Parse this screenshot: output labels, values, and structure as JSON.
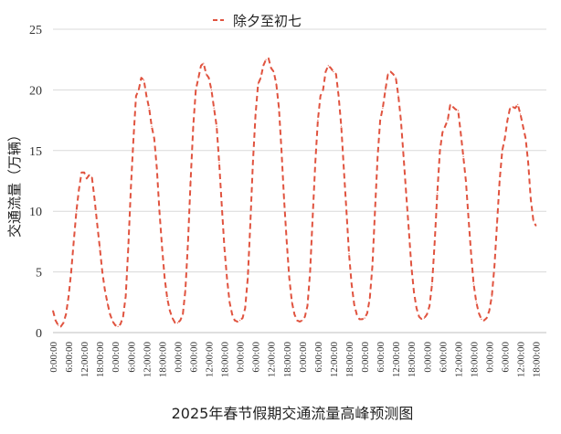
{
  "chart_data": {
    "type": "line",
    "title": "",
    "xlabel": "2025年春节假期交通流量高峰预测图",
    "ylabel": "交通流量（万辆）",
    "ylim": [
      0,
      25
    ],
    "yticks": [
      0,
      5,
      10,
      15,
      20,
      25
    ],
    "grid": "horizontal",
    "legend_position": "top-center",
    "x_tick_labels": [
      "0:00:00",
      "6:00:00",
      "12:00:00",
      "18:00:00",
      "0:00:00",
      "6:00:00",
      "12:00:00",
      "18:00:00",
      "0:00:00",
      "6:00:00",
      "12:00:00",
      "18:00:00",
      "0:00:00",
      "6:00:00",
      "12:00:00",
      "18:00:00",
      "0:00:00",
      "6:00:00",
      "12:00:00",
      "18:00:00",
      "0:00:00",
      "6:00:00",
      "12:00:00",
      "18:00:00",
      "0:00:00",
      "6:00:00",
      "12:00:00",
      "18:00:00",
      "0:00:00",
      "6:00:00",
      "12:00:00",
      "18:00:00"
    ],
    "x_hours": [
      0,
      6,
      12,
      18,
      24,
      30,
      36,
      42,
      48,
      54,
      60,
      66,
      72,
      78,
      84,
      90,
      96,
      102,
      108,
      114,
      120,
      126,
      132,
      138,
      144,
      150,
      156,
      162,
      168,
      174,
      180,
      186
    ],
    "series": [
      {
        "name": "除夕至初七",
        "color": "#e0533f",
        "style": "dashed",
        "points": [
          [
            0,
            1.8
          ],
          [
            1,
            1.0
          ],
          [
            2,
            0.6
          ],
          [
            3,
            0.5
          ],
          [
            4,
            0.8
          ],
          [
            5,
            1.5
          ],
          [
            6,
            3.0
          ],
          [
            7,
            5.0
          ],
          [
            8,
            7.5
          ],
          [
            9,
            10.0
          ],
          [
            10,
            11.8
          ],
          [
            11,
            13.2
          ],
          [
            12,
            13.2
          ],
          [
            13,
            12.7
          ],
          [
            14,
            13.0
          ],
          [
            15,
            12.8
          ],
          [
            16,
            11.0
          ],
          [
            17,
            9.0
          ],
          [
            18,
            7.0
          ],
          [
            19,
            5.0
          ],
          [
            20,
            3.5
          ],
          [
            21,
            2.4
          ],
          [
            22,
            1.5
          ],
          [
            23,
            0.9
          ],
          [
            24,
            0.6
          ],
          [
            25,
            0.5
          ],
          [
            26,
            0.7
          ],
          [
            27,
            1.3
          ],
          [
            28,
            3.0
          ],
          [
            29,
            7.0
          ],
          [
            30,
            12.0
          ],
          [
            31,
            16.0
          ],
          [
            32,
            19.5
          ],
          [
            33,
            20.0
          ],
          [
            34,
            21.0
          ],
          [
            35,
            20.8
          ],
          [
            36,
            19.5
          ],
          [
            37,
            18.5
          ],
          [
            38,
            17.0
          ],
          [
            39,
            16.0
          ],
          [
            40,
            13.5
          ],
          [
            41,
            10.0
          ],
          [
            42,
            7.0
          ],
          [
            43,
            4.5
          ],
          [
            44,
            2.8
          ],
          [
            45,
            1.8
          ],
          [
            46,
            1.2
          ],
          [
            47,
            0.8
          ],
          [
            48,
            0.8
          ],
          [
            49,
            1.0
          ],
          [
            50,
            1.5
          ],
          [
            51,
            3.5
          ],
          [
            52,
            7.5
          ],
          [
            53,
            12.5
          ],
          [
            54,
            17.0
          ],
          [
            55,
            20.0
          ],
          [
            56,
            21.0
          ],
          [
            57,
            22.0
          ],
          [
            58,
            22.2
          ],
          [
            59,
            21.3
          ],
          [
            60,
            21.0
          ],
          [
            61,
            20.0
          ],
          [
            62,
            18.5
          ],
          [
            63,
            17.0
          ],
          [
            64,
            14.0
          ],
          [
            65,
            10.5
          ],
          [
            66,
            7.0
          ],
          [
            67,
            4.5
          ],
          [
            68,
            2.5
          ],
          [
            69,
            1.5
          ],
          [
            70,
            1.0
          ],
          [
            71,
            0.9
          ],
          [
            72,
            1.0
          ],
          [
            73,
            1.2
          ],
          [
            74,
            2.0
          ],
          [
            75,
            4.5
          ],
          [
            76,
            9.0
          ],
          [
            77,
            14.0
          ],
          [
            78,
            18.0
          ],
          [
            79,
            20.5
          ],
          [
            80,
            21.0
          ],
          [
            81,
            22.0
          ],
          [
            82,
            22.5
          ],
          [
            83,
            22.6
          ],
          [
            84,
            21.8
          ],
          [
            85,
            21.5
          ],
          [
            86,
            20.5
          ],
          [
            87,
            18.5
          ],
          [
            88,
            15.0
          ],
          [
            89,
            11.0
          ],
          [
            90,
            7.5
          ],
          [
            91,
            4.5
          ],
          [
            92,
            2.5
          ],
          [
            93,
            1.5
          ],
          [
            94,
            1.0
          ],
          [
            95,
            0.9
          ],
          [
            96,
            1.0
          ],
          [
            97,
            1.3
          ],
          [
            98,
            2.2
          ],
          [
            99,
            5.0
          ],
          [
            100,
            9.5
          ],
          [
            101,
            14.0
          ],
          [
            102,
            17.5
          ],
          [
            103,
            19.5
          ],
          [
            104,
            20.0
          ],
          [
            105,
            21.5
          ],
          [
            106,
            22.0
          ],
          [
            107,
            21.8
          ],
          [
            108,
            21.5
          ],
          [
            109,
            21.3
          ],
          [
            110,
            19.5
          ],
          [
            111,
            17.0
          ],
          [
            112,
            13.5
          ],
          [
            113,
            10.0
          ],
          [
            114,
            6.5
          ],
          [
            115,
            4.0
          ],
          [
            116,
            2.3
          ],
          [
            117,
            1.5
          ],
          [
            118,
            1.1
          ],
          [
            119,
            1.1
          ],
          [
            120,
            1.2
          ],
          [
            121,
            1.6
          ],
          [
            122,
            2.8
          ],
          [
            123,
            5.5
          ],
          [
            124,
            10.0
          ],
          [
            125,
            14.5
          ],
          [
            126,
            17.5
          ],
          [
            127,
            18.5
          ],
          [
            128,
            20.0
          ],
          [
            129,
            21.3
          ],
          [
            130,
            21.5
          ],
          [
            131,
            21.3
          ],
          [
            132,
            21.0
          ],
          [
            133,
            19.5
          ],
          [
            134,
            17.5
          ],
          [
            135,
            14.5
          ],
          [
            136,
            11.5
          ],
          [
            137,
            8.5
          ],
          [
            138,
            5.5
          ],
          [
            139,
            3.3
          ],
          [
            140,
            2.0
          ],
          [
            141,
            1.3
          ],
          [
            142,
            1.1
          ],
          [
            143,
            1.2
          ],
          [
            144,
            1.5
          ],
          [
            145,
            2.2
          ],
          [
            146,
            4.0
          ],
          [
            147,
            7.5
          ],
          [
            148,
            11.5
          ],
          [
            149,
            15.0
          ],
          [
            150,
            16.5
          ],
          [
            151,
            17.0
          ],
          [
            152,
            17.5
          ],
          [
            153,
            18.8
          ],
          [
            154,
            18.6
          ],
          [
            155,
            18.4
          ],
          [
            156,
            18.3
          ],
          [
            157,
            16.5
          ],
          [
            158,
            14.5
          ],
          [
            159,
            12.5
          ],
          [
            160,
            9.5
          ],
          [
            161,
            6.5
          ],
          [
            162,
            4.0
          ],
          [
            163,
            2.5
          ],
          [
            164,
            1.6
          ],
          [
            165,
            1.1
          ],
          [
            166,
            1.0
          ],
          [
            167,
            1.2
          ],
          [
            168,
            1.8
          ],
          [
            169,
            3.0
          ],
          [
            170,
            5.5
          ],
          [
            171,
            9.0
          ],
          [
            172,
            12.5
          ],
          [
            173,
            15.0
          ],
          [
            174,
            16.0
          ],
          [
            175,
            17.5
          ],
          [
            176,
            18.5
          ],
          [
            177,
            18.6
          ],
          [
            178,
            18.5
          ],
          [
            179,
            18.8
          ],
          [
            180,
            18.0
          ],
          [
            181,
            17.0
          ],
          [
            182,
            16.0
          ],
          [
            183,
            14.0
          ],
          [
            184,
            11.0
          ],
          [
            185,
            9.2
          ],
          [
            186,
            8.8
          ]
        ]
      }
    ]
  }
}
